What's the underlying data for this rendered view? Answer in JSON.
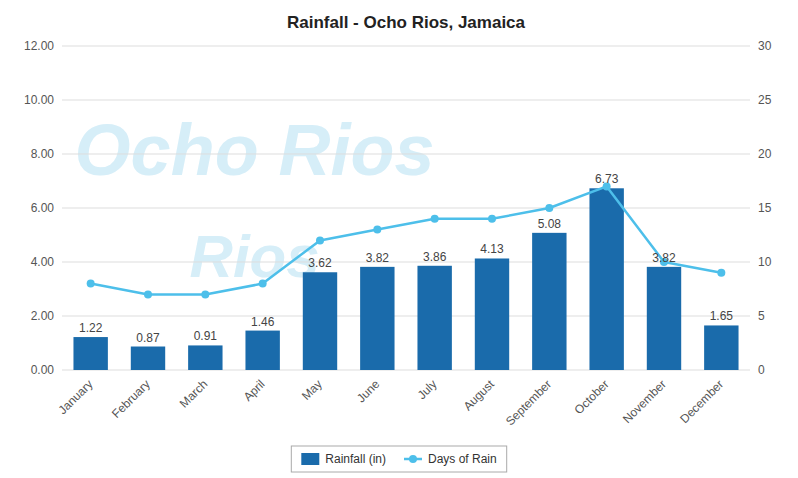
{
  "chart_data": {
    "type": "bar",
    "title": "Rainfall - Ocho Rios, Jamaica",
    "categories": [
      "January",
      "February",
      "March",
      "April",
      "May",
      "June",
      "July",
      "August",
      "September",
      "October",
      "November",
      "December"
    ],
    "series": [
      {
        "name": "Rainfall (in)",
        "type": "bar",
        "color": "#1a6bab",
        "data_labels": true,
        "values": [
          1.22,
          0.87,
          0.91,
          1.46,
          3.62,
          3.82,
          3.86,
          4.13,
          5.08,
          6.73,
          3.82,
          1.65
        ]
      },
      {
        "name": "Days of Rain",
        "type": "line",
        "color": "#4dbfea",
        "marker": "circle",
        "axis": "y2",
        "values": [
          8,
          7,
          7,
          8,
          12,
          13,
          14,
          14,
          15,
          17,
          10,
          9
        ]
      }
    ],
    "ylim": [
      0,
      12
    ],
    "yticks": [
      {
        "value": 0.0,
        "label": "0.00"
      },
      {
        "value": 2.0,
        "label": "2.00"
      },
      {
        "value": 4.0,
        "label": "4.00"
      },
      {
        "value": 6.0,
        "label": "6.00"
      },
      {
        "value": 8.0,
        "label": "8.00"
      },
      {
        "value": 10.0,
        "label": "10.00"
      },
      {
        "value": 12.0,
        "label": "12.00"
      }
    ],
    "y2lim": [
      0,
      30
    ],
    "y2ticks": [
      0,
      5,
      10,
      15,
      20,
      25,
      30
    ],
    "grid": true,
    "legend": "bottom",
    "annotations": [
      {
        "text": "Ocho Rios",
        "color": "#d6eef8"
      },
      {
        "text": "Rios",
        "color": "#d6eef8"
      }
    ]
  }
}
